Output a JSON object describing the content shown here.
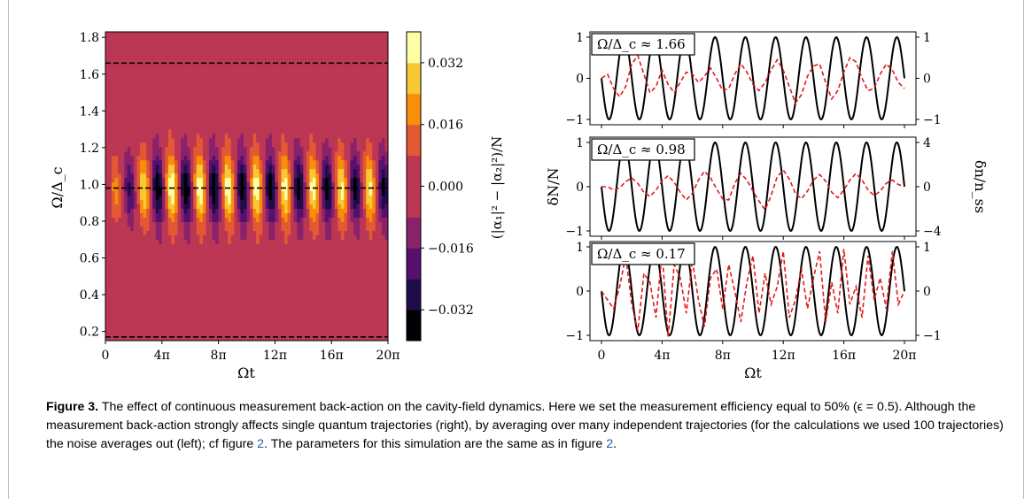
{
  "figure": {
    "heatmap": {
      "ylabel": "Ω/Δ_c",
      "xlabel": "Ωt",
      "colorbar_label": "(|α₁|² − |α₂|²)/N",
      "xticks": [
        "0",
        "4π",
        "8π",
        "12π",
        "16π",
        "20π"
      ],
      "yticks": [
        "0.2",
        "0.4",
        "0.6",
        "0.8",
        "1.0",
        "1.2",
        "1.4",
        "1.6",
        "1.8"
      ],
      "colorbar_ticks": [
        "0.032",
        "0.016",
        "0.000",
        "−0.016",
        "−0.032"
      ]
    },
    "traces": {
      "xlabel": "Ωt",
      "ylabel_left": "δN/N",
      "ylabel_right": "δn/n_ss",
      "xticks": [
        "0",
        "4π",
        "8π",
        "12π",
        "16π",
        "20π"
      ],
      "panels": [
        {
          "label": "Ω/Δ_c ≈ 1.66",
          "left_ticks": [
            "1",
            "0",
            "−1"
          ],
          "right_ticks": [
            "1",
            "0",
            "−1"
          ]
        },
        {
          "label": "Ω/Δ_c ≈ 0.98",
          "left_ticks": [
            "1",
            "0",
            "−1"
          ],
          "right_ticks": [
            "4",
            "0",
            "−4"
          ]
        },
        {
          "label": "Ω/Δ_c ≈ 0.17",
          "left_ticks": [
            "1",
            "0",
            "−1"
          ],
          "right_ticks": [
            "1",
            "0",
            "−1"
          ]
        }
      ]
    }
  },
  "chart_data": [
    {
      "type": "heatmap",
      "xlabel": "Ωt",
      "ylabel": "Ω/Δ_c",
      "colorbar_label": "(|α₁|² − |α₂|²)/N",
      "xlim": [
        "0",
        "20π"
      ],
      "ylim": [
        0.15,
        1.83
      ],
      "clim": [
        -0.04,
        0.04
      ],
      "colormap": "inferno",
      "colorbar_levels": [
        -0.04,
        -0.032,
        -0.024,
        -0.016,
        -0.008,
        0.0,
        0.008,
        0.016,
        0.024,
        0.032,
        0.04
      ],
      "dashed_lines_y": [
        1.66,
        0.98,
        0.17
      ],
      "oscillation_periods_in_range": 10,
      "max_contrast_at_y": 0.98
    },
    {
      "type": "line",
      "panel_label": "Ω/Δ_c ≈ 1.66",
      "xlim": [
        "0",
        "20π"
      ],
      "ylim_left": [
        -1,
        1
      ],
      "ylim_right": [
        -1,
        1
      ],
      "series": [
        {
          "style": "solid",
          "color": "#000000",
          "shape": "cos",
          "periods": 10,
          "amplitude": 1
        },
        {
          "style": "dashed",
          "color": "#e31a1c",
          "values": [
            0.0,
            0.1,
            -0.25,
            -0.45,
            -0.2,
            0.35,
            0.55,
            0.1,
            -0.35,
            -0.2,
            0.2,
            -0.15,
            -0.35,
            -0.1,
            0.15,
            0.1,
            -0.1,
            0.05,
            0.25,
            0.0,
            -0.3,
            -0.25,
            0.1,
            0.35,
            0.15,
            -0.15,
            -0.3,
            -0.1,
            0.2,
            0.45,
            0.2,
            -0.2,
            -0.6,
            -0.4,
            0.05,
            0.3,
            0.35,
            -0.1,
            -0.5,
            -0.3,
            0.15,
            0.5,
            0.4,
            0.0,
            -0.3,
            -0.25,
            0.1,
            0.35,
            0.2,
            -0.1,
            -0.25
          ]
        }
      ]
    },
    {
      "type": "line",
      "panel_label": "Ω/Δ_c ≈ 0.98",
      "xlim": [
        "0",
        "20π"
      ],
      "ylim_left": [
        -1,
        1
      ],
      "ylim_right": [
        -4,
        4
      ],
      "series": [
        {
          "style": "solid",
          "color": "#000000",
          "shape": "cos",
          "periods": 10,
          "amplitude": 1
        },
        {
          "style": "dashed",
          "color": "#e31a1c",
          "values": [
            0.0,
            0.0,
            -0.3,
            -0.1,
            0.45,
            0.8,
            0.3,
            -0.5,
            -0.9,
            -0.3,
            0.5,
            1.0,
            0.4,
            -0.5,
            -1.2,
            -0.6,
            0.6,
            1.4,
            0.8,
            -0.2,
            -1.1,
            -1.2,
            0.3,
            1.2,
            0.6,
            -0.4,
            -1.3,
            -2.1,
            -0.8,
            0.9,
            1.5,
            0.7,
            -0.6,
            -1.1,
            -0.4,
            0.6,
            1.1,
            0.5,
            -0.5,
            -1.0,
            -0.3,
            0.6,
            1.2,
            0.6,
            -0.3,
            -0.8,
            -0.4,
            0.3,
            0.6,
            0.2,
            0.0
          ]
        }
      ]
    },
    {
      "type": "line",
      "panel_label": "Ω/Δ_c ≈ 0.17",
      "xlim": [
        "0",
        "20π"
      ],
      "ylim_left": [
        -1,
        1
      ],
      "ylim_right": [
        -1,
        1
      ],
      "series": [
        {
          "style": "solid",
          "color": "#000000",
          "shape": "cos",
          "periods": 10,
          "amplitude": 1
        },
        {
          "style": "dashed",
          "color": "#e31a1c",
          "values": [
            0.0,
            -0.2,
            -0.4,
            0.1,
            0.8,
            -0.3,
            -0.9,
            0.4,
            0.2,
            -0.6,
            0.9,
            -1.05,
            0.6,
            0.3,
            -0.5,
            0.7,
            -0.2,
            -0.8,
            0.3,
            0.5,
            -0.4,
            0.6,
            0.0,
            -0.7,
            0.2,
            0.8,
            -0.5,
            0.4,
            -0.3,
            0.1,
            0.9,
            -0.6,
            -0.2,
            0.5,
            -0.4,
            0.3,
            0.9,
            -0.7,
            0.2,
            -0.5,
            0.95,
            -0.3,
            0.1,
            -0.6,
            0.8,
            -0.2,
            0.3,
            -0.4,
            0.9,
            -0.3,
            0.0
          ]
        }
      ]
    }
  ],
  "caption": {
    "label": "Figure 3.",
    "text_1": "The effect of continuous measurement back-action on the cavity-field dynamics. Here we set the measurement efficiency equal to 50% (ϵ = 0.5). Although the measurement back-action strongly affects single quantum trajectories (right), by averaging over many independent trajectories (for the calculations we used 100 trajectories) the noise averages out (left); cf figure ",
    "ref_1": "2",
    "text_2": ". The parameters for this simulation are the same as in figure ",
    "ref_2": "2",
    "text_3": "."
  }
}
